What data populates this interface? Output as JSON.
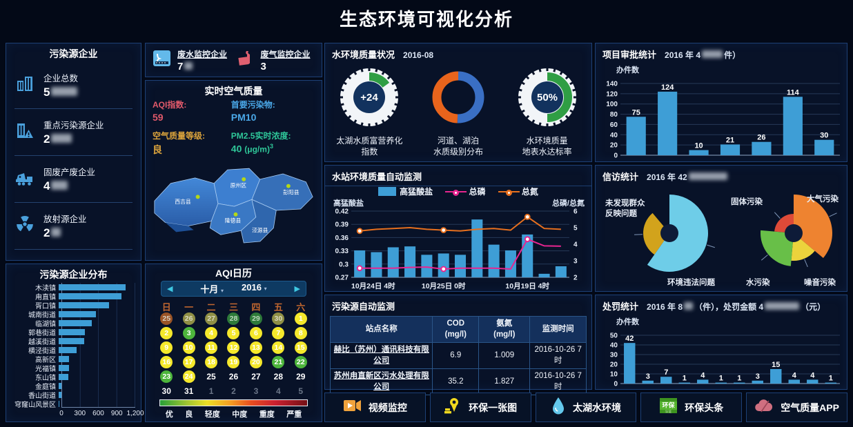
{
  "page_title": "生态环境可视化分析",
  "pollution_panel": {
    "title": "污染源企业",
    "items": [
      {
        "label": "企业总数",
        "value": "5",
        "masked": true,
        "mask_w": 38,
        "icon": "building-icon"
      },
      {
        "label": "重点污染源企业",
        "value": "2",
        "masked": true,
        "mask_w": 30,
        "icon": "building-alert-icon"
      },
      {
        "label": "固废产废企业",
        "value": "4",
        "masked": true,
        "mask_w": 24,
        "icon": "truck-icon"
      },
      {
        "label": "放射源企业",
        "value": "2",
        "masked": true,
        "mask_w": 14,
        "icon": "radiation-icon"
      }
    ]
  },
  "monitor_counts": {
    "waste_water": {
      "label": "废水监控企业",
      "value": "7",
      "masked": true,
      "mask_w": 12,
      "icon": "water-monitor-icon"
    },
    "waste_gas": {
      "label": "废气监控企业",
      "value": "3",
      "masked": false,
      "icon": "factory-icon"
    }
  },
  "air_quality": {
    "title": "实时空气质量",
    "aqi_label": "AQI指数:",
    "aqi_value": "59",
    "pollutant_label": "首要污染物:",
    "pollutant_value": "PM10",
    "grade_label": "空气质量等级:",
    "grade_value": "良",
    "pm25_label": "PM2.5实时浓度:",
    "pm25_value": "40",
    "pm25_unit": "(μg/m)",
    "pm25_sup": "3",
    "map_regions": [
      "西吉县",
      "原州区",
      "彭阳县",
      "隆德县",
      "泾源县"
    ]
  },
  "aqi_calendar": {
    "title": "AQI日历",
    "month": "十月",
    "year": "2016",
    "weekdays": [
      "日",
      "一",
      "二",
      "三",
      "四",
      "五",
      "六"
    ],
    "cells": [
      {
        "d": "25",
        "t": "prev-orange"
      },
      {
        "d": "26",
        "t": "prev-olive"
      },
      {
        "d": "27",
        "t": "prev-olive"
      },
      {
        "d": "28",
        "t": "prev-green"
      },
      {
        "d": "29",
        "t": "prev-green"
      },
      {
        "d": "30",
        "t": "prev-olive"
      },
      {
        "d": "1",
        "t": "yellow"
      },
      {
        "d": "2",
        "t": "yellow"
      },
      {
        "d": "3",
        "t": "green"
      },
      {
        "d": "4",
        "t": "yellow"
      },
      {
        "d": "5",
        "t": "yellow"
      },
      {
        "d": "6",
        "t": "yellow"
      },
      {
        "d": "7",
        "t": "yellow"
      },
      {
        "d": "8",
        "t": "yellow"
      },
      {
        "d": "9",
        "t": "yellow"
      },
      {
        "d": "10",
        "t": "yellow"
      },
      {
        "d": "11",
        "t": "yellow"
      },
      {
        "d": "12",
        "t": "yellow"
      },
      {
        "d": "13",
        "t": "yellow"
      },
      {
        "d": "14",
        "t": "yellow"
      },
      {
        "d": "15",
        "t": "yellow"
      },
      {
        "d": "16",
        "t": "yellow"
      },
      {
        "d": "17",
        "t": "yellow"
      },
      {
        "d": "18",
        "t": "yellow"
      },
      {
        "d": "19",
        "t": "yellow"
      },
      {
        "d": "20",
        "t": "yellow"
      },
      {
        "d": "21",
        "t": "green"
      },
      {
        "d": "22",
        "t": "green"
      },
      {
        "d": "23",
        "t": "green"
      },
      {
        "d": "24",
        "t": "yellow"
      },
      {
        "d": "25",
        "t": "plain"
      },
      {
        "d": "26",
        "t": "plain"
      },
      {
        "d": "27",
        "t": "plain"
      },
      {
        "d": "28",
        "t": "plain"
      },
      {
        "d": "29",
        "t": "plain"
      },
      {
        "d": "30",
        "t": "plain"
      },
      {
        "d": "31",
        "t": "plain"
      },
      {
        "d": "1",
        "t": "next"
      },
      {
        "d": "2",
        "t": "next"
      },
      {
        "d": "3",
        "t": "next"
      },
      {
        "d": "4",
        "t": "next"
      },
      {
        "d": "5",
        "t": "next"
      }
    ],
    "legend": [
      "优",
      "良",
      "轻度",
      "中度",
      "重度",
      "严重"
    ]
  },
  "water_env": {
    "title": "水环境质量状况",
    "date": "2016-08",
    "gauges": [
      {
        "type": "tick",
        "value": "+24",
        "percent": 15,
        "label1": "太湖水质富营养化",
        "label2": "指数"
      },
      {
        "type": "donut",
        "value": "",
        "blue_deg": 182,
        "label1": "河道、湖泊",
        "label2": "水质级别分布"
      },
      {
        "type": "tick",
        "value": "50%",
        "percent": 50,
        "label1": "水环境质量",
        "label2": "地表水达标率"
      }
    ]
  },
  "water_station": {
    "title": "水站环境质量自动监测",
    "legend": [
      "高猛酸盐",
      "总磷",
      "总氮"
    ],
    "left_axis_label": "高猛酸盐",
    "right_axis_label": "总磷/总氮"
  },
  "pollution_monitor_table": {
    "title": "污染源自动监测",
    "headers": [
      {
        "l1": "站点名称",
        "l2": ""
      },
      {
        "l1": "COD",
        "l2": "(mg/l)"
      },
      {
        "l1": "氨氮",
        "l2": "(mg/l)"
      },
      {
        "l1": "监测时间",
        "l2": ""
      }
    ],
    "rows": [
      {
        "name": "赫比（苏州）通讯科技有限公司",
        "cod": "6.9",
        "nh3": "1.009",
        "time": "2016-10-26 7时"
      },
      {
        "name": "苏州甪直新区污水处理有限公司",
        "cod": "35.2",
        "nh3": "1.827",
        "time": "2016-10-26 7时"
      }
    ]
  },
  "project_approval": {
    "title": "项目审批统计",
    "subtitle_prefix": "2016 年 4",
    "subtitle_suffix": "件）",
    "ylabel": "办件数"
  },
  "petition": {
    "title": "信访统计",
    "subtitle_prefix": "2016 年 42"
  },
  "penalty": {
    "title": "处罚统计",
    "subtitle_p1": "2016 年 8",
    "subtitle_p2": "（件），处罚金额 4",
    "subtitle_p3": "（元）",
    "ylabel": "办件数"
  },
  "bottom_buttons": [
    {
      "label": "视频监控",
      "icon": "video-icon"
    },
    {
      "label": "环保一张图",
      "icon": "map-pin-icon"
    },
    {
      "label": "太湖水环境",
      "icon": "water-drop-icon"
    },
    {
      "label": "环保头条",
      "icon": "huanbao-badge-icon"
    },
    {
      "label": "空气质量APP",
      "icon": "cloud-app-icon"
    }
  ],
  "colors": {
    "bar_blue": "#3e9ed6",
    "line_pink": "#e8258f",
    "line_orange": "#e8701e",
    "gauge_green": "#2f9e44",
    "donut_blue": "#3a6fc4",
    "donut_orange": "#e8641c",
    "aqi_red": "#e0596a",
    "aqi_blue": "#4aa8e8",
    "aqi_orange": "#dca43c",
    "aqi_green": "#2fc89a"
  },
  "chart_data": [
    {
      "id": "pollution_distribution",
      "type": "bar",
      "orientation": "horizontal",
      "title": "污染源企业分布",
      "categories": [
        "木渎镇",
        "甪直镇",
        "胥口镇",
        "城南街道",
        "临湖镇",
        "郭巷街道",
        "越溪街道",
        "横泾街道",
        "高新区",
        "光福镇",
        "东山镇",
        "金庭镇",
        "香山街道",
        "穹窿山风景区"
      ],
      "values": [
        1050,
        980,
        790,
        580,
        520,
        410,
        400,
        280,
        165,
        160,
        155,
        42,
        38,
        10
      ],
      "xlim": [
        0,
        1200
      ],
      "xticks": [
        "0",
        "300",
        "600",
        "900",
        "1,200"
      ],
      "grid": true
    },
    {
      "id": "water_station",
      "type": "bar+line",
      "title": "水站环境质量自动监测",
      "x_tick_labels": [
        {
          "idx": 0,
          "text": "10月24日 4时"
        },
        {
          "idx": 5,
          "text": "10月25日 0时"
        },
        {
          "idx": 10,
          "text": "10月19日 4时"
        }
      ],
      "series": [
        {
          "name": "高猛酸盐",
          "type": "bar",
          "axis": "left",
          "values": [
            0.331,
            0.327,
            0.338,
            0.34,
            0.321,
            0.324,
            0.321,
            0.401,
            0.344,
            0.331,
            0.367,
            0.278,
            0.295
          ]
        },
        {
          "name": "总磷",
          "type": "line",
          "axis": "right",
          "values": [
            2.55,
            2.55,
            2.55,
            2.6,
            2.62,
            2.5,
            2.55,
            2.55,
            2.55,
            2.5,
            4.3,
            3.9,
            3.88
          ],
          "marker_idx": [
            0,
            5,
            10
          ]
        },
        {
          "name": "总氮",
          "type": "line",
          "axis": "right",
          "values": [
            4.8,
            4.9,
            4.95,
            5.0,
            4.9,
            4.85,
            4.8,
            4.9,
            4.95,
            4.85,
            5.65,
            4.95,
            4.9
          ],
          "marker_idx": [
            0,
            5,
            10
          ]
        }
      ],
      "left_axis": {
        "label": "高猛酸盐",
        "min": 0.27,
        "max": 0.42,
        "ticks": [
          "0.27",
          "0.3",
          "0.33",
          "0.36",
          "0.39",
          "0.42"
        ]
      },
      "right_axis": {
        "label": "总磷/总氮",
        "min": 2,
        "max": 6,
        "ticks": [
          "2",
          "3",
          "4",
          "5",
          "6"
        ]
      }
    },
    {
      "id": "project_approval",
      "type": "bar",
      "ylabel": "办件数",
      "values": [
        75,
        124,
        10,
        21,
        26,
        114,
        30
      ],
      "ylim": [
        0,
        140
      ],
      "yticks": [
        0,
        20,
        40,
        60,
        80,
        100,
        120,
        140
      ],
      "value_labels": true
    },
    {
      "id": "penalty",
      "type": "bar",
      "ylabel": "办件数",
      "values": [
        42,
        3,
        7,
        1,
        4,
        1,
        1,
        3,
        15,
        4,
        4,
        1
      ],
      "ylim": [
        0,
        50
      ],
      "yticks": [
        0,
        10,
        20,
        30,
        40,
        50
      ],
      "value_labels": true
    },
    {
      "id": "petition_left",
      "type": "pie",
      "variant": "rose",
      "inner_r": 13,
      "segments": [
        {
          "label": "环境违法问题",
          "color": "#6ecde8",
          "start": 0,
          "end": 215,
          "r": 56
        },
        {
          "label": "未发现群众反映问题",
          "color": "#d2a31c",
          "start": 215,
          "end": 320,
          "r": 38
        }
      ]
    },
    {
      "id": "petition_right",
      "type": "pie",
      "variant": "rose",
      "inner_r": 13,
      "segments": [
        {
          "label": "大气污染",
          "color": "#ee8330",
          "start": 0,
          "end": 130,
          "r": 56
        },
        {
          "label": "噪音污染",
          "color": "#ecd33c",
          "start": 130,
          "end": 185,
          "r": 40
        },
        {
          "label": "水污染",
          "color": "#68bf48",
          "start": 185,
          "end": 275,
          "r": 48
        },
        {
          "label": "固体污染",
          "color": "#dd4a38",
          "start": 275,
          "end": 360,
          "r": 28
        }
      ]
    }
  ]
}
